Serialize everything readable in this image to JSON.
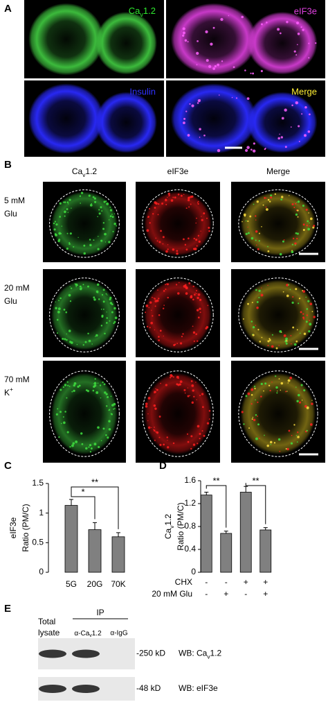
{
  "panel_a": {
    "label": "A",
    "images": [
      {
        "text": "Ca",
        "sub": "v",
        "after": "1.2"
      },
      "eIF3e",
      "Insulin",
      "Merge"
    ]
  },
  "panel_b": {
    "label": "B",
    "columns": [
      {
        "text": "Ca",
        "sub": "v",
        "after": "1.2"
      },
      "eIF3e",
      "Merge"
    ],
    "rows": [
      [
        "5 mM",
        "Glu"
      ],
      [
        "20 mM",
        "Glu"
      ],
      [
        "70 mM",
        {
          "text": "K",
          "sup": "+"
        }
      ]
    ]
  },
  "chart_data": [
    {
      "type": "bar",
      "label": "C",
      "ylabel": [
        "eIF3e",
        "Ratio (PM/C)"
      ],
      "categories": [
        "5G",
        "20G",
        "70K"
      ],
      "values": [
        1.13,
        0.72,
        0.6
      ],
      "errors": [
        0.1,
        0.12,
        0.07
      ],
      "color": "#808080",
      "ylim": [
        0,
        1.5
      ],
      "yticks": [
        0,
        0.5,
        1,
        1.5
      ],
      "annotations": [
        {
          "text": "*",
          "from": 0,
          "to": 1
        },
        {
          "text": "**",
          "from": 0,
          "to": 2
        }
      ]
    },
    {
      "type": "bar",
      "label": "D",
      "ylabel": [
        {
          "text": "Ca",
          "sub": "v",
          "after": "1.2"
        },
        "Ratio (PM/C)"
      ],
      "categories": [
        null,
        null,
        null,
        null
      ],
      "values": [
        1.35,
        0.68,
        1.4,
        0.74
      ],
      "errors": [
        0.05,
        0.04,
        0.1,
        0.04
      ],
      "color": "#808080",
      "ylim": [
        0,
        1.6
      ],
      "yticks": [
        0,
        0.4,
        0.8,
        1.2,
        1.6
      ],
      "annotations": [
        {
          "text": "**",
          "from": 0,
          "to": 1
        },
        {
          "text": "**",
          "from": 2,
          "to": 3
        }
      ],
      "conditions": [
        {
          "name": "CHX",
          "signs": [
            "-",
            "-",
            "+",
            "+"
          ]
        },
        {
          "name": "20 mM Glu",
          "signs": [
            "-",
            "+",
            "-",
            "+"
          ]
        }
      ]
    }
  ],
  "panel_e": {
    "label": "E",
    "lanes": [
      [
        "Total",
        "lysate"
      ]
    ],
    "ip": "IP",
    "ip_lanes": [
      {
        "text": "α-Ca",
        "sub": "v",
        "after": "1.2"
      },
      "α-IgG"
    ],
    "blots": [
      {
        "size": "-250 kD",
        "wb": {
          "text": "WB: Ca",
          "sub": "v",
          "after": "1.2"
        }
      },
      {
        "size": "-48 kD",
        "wb": "WB: eIF3e"
      }
    ]
  }
}
